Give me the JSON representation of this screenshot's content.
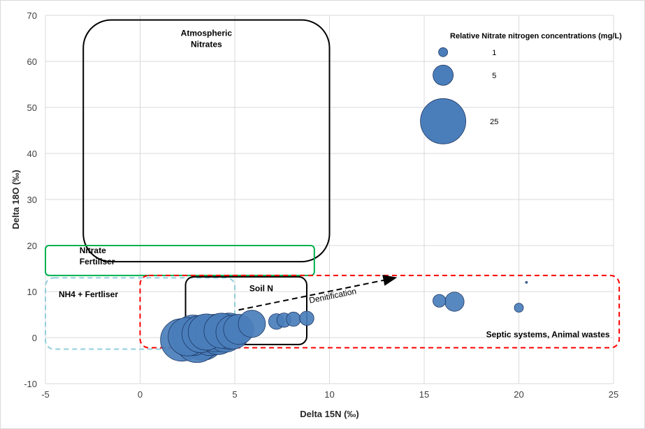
{
  "chart_data": {
    "type": "scatter",
    "subtype": "bubble",
    "xlabel": "Delta 15N (‰)",
    "ylabel": "Delta 18O (‰)",
    "xlim": [
      -5,
      25
    ],
    "ylim": [
      -10,
      70
    ],
    "xticks": [
      -5,
      0,
      5,
      10,
      15,
      20,
      25
    ],
    "yticks": [
      -10,
      0,
      10,
      20,
      30,
      40,
      50,
      60,
      70
    ],
    "grid": "vertical and horizontal major gridlines",
    "marker_color": "#4a7ebb",
    "marker_edge_color": "#1f3864",
    "bubble_size_meaning": "Nitrate nitrogen concentration (mg/L)",
    "points": [
      {
        "x": 2.2,
        "y": -0.5,
        "size": 22
      },
      {
        "x": 2.5,
        "y": 0.2,
        "size": 18
      },
      {
        "x": 2.8,
        "y": 0.5,
        "size": 20
      },
      {
        "x": 3.0,
        "y": -0.8,
        "size": 22
      },
      {
        "x": 3.2,
        "y": 0.8,
        "size": 17
      },
      {
        "x": 3.3,
        "y": -0.2,
        "size": 23
      },
      {
        "x": 3.5,
        "y": 1.2,
        "size": 16
      },
      {
        "x": 3.7,
        "y": 0.4,
        "size": 19
      },
      {
        "x": 3.9,
        "y": 1.0,
        "size": 17
      },
      {
        "x": 4.1,
        "y": 0.6,
        "size": 19
      },
      {
        "x": 4.3,
        "y": 1.5,
        "size": 15
      },
      {
        "x": 4.5,
        "y": 0.9,
        "size": 17
      },
      {
        "x": 4.7,
        "y": 1.4,
        "size": 16
      },
      {
        "x": 4.9,
        "y": 1.2,
        "size": 14
      },
      {
        "x": 5.2,
        "y": 1.8,
        "size": 11
      },
      {
        "x": 5.9,
        "y": 3.0,
        "size": 9
      },
      {
        "x": 7.2,
        "y": 3.5,
        "size": 3
      },
      {
        "x": 7.6,
        "y": 3.8,
        "size": 2.5
      },
      {
        "x": 8.1,
        "y": 4.0,
        "size": 2.5
      },
      {
        "x": 8.8,
        "y": 4.2,
        "size": 2.5
      },
      {
        "x": 15.8,
        "y": 8.0,
        "size": 2.0
      },
      {
        "x": 16.6,
        "y": 7.8,
        "size": 4.5
      },
      {
        "x": 20.0,
        "y": 6.5,
        "size": 1.0
      },
      {
        "x": 20.4,
        "y": 12.0,
        "size": 0.05
      }
    ],
    "regions": [
      {
        "label": "Atmospheric\nNitrates",
        "x0": -3,
        "x1": 10,
        "y0": 16.5,
        "y1": 69,
        "color": "#000000",
        "style": "solid",
        "rounded": true
      },
      {
        "label": "Nitrate\nFertiliser",
        "x0": -5,
        "x1": 9.2,
        "y0": 13.5,
        "y1": 20,
        "color": "#00b050",
        "style": "solid",
        "rounded": true
      },
      {
        "label": "NH4 + Fertliser",
        "x0": -5,
        "x1": 5,
        "y0": -2.5,
        "y1": 13,
        "color": "#92cddc",
        "style": "dashed",
        "rounded": true
      },
      {
        "label": "Soil N",
        "x0": 2.4,
        "x1": 8.8,
        "y0": -1.5,
        "y1": 13.2,
        "color": "#000000",
        "style": "solid",
        "rounded": true
      },
      {
        "label": "Septic systems, Animal wastes",
        "x0": 0,
        "x1": 25.3,
        "y0": -2.2,
        "y1": 13.5,
        "color": "#ff0000",
        "style": "dashed",
        "rounded": true
      }
    ],
    "annotation": {
      "text": "Denitification",
      "arrow_from": [
        5.2,
        6.0
      ],
      "arrow_to": [
        13.5,
        13.0
      ]
    },
    "legend": {
      "title": "Relative Nitrate nitrogen concentrations (mg/L)",
      "placement": "top-right",
      "entries": [
        {
          "label": "1",
          "size": 1
        },
        {
          "label": "5",
          "size": 5
        },
        {
          "label": "25",
          "size": 25
        }
      ]
    }
  }
}
